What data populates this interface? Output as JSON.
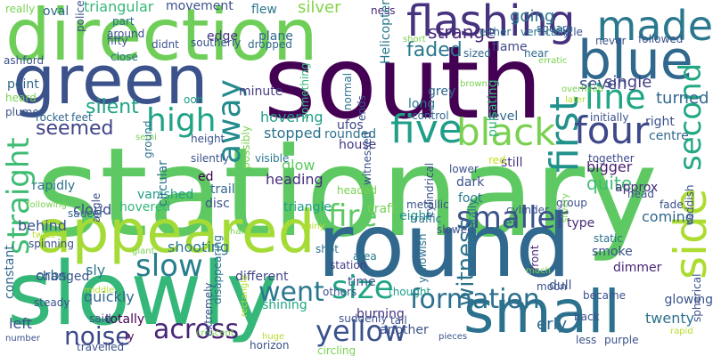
{
  "words": [
    {
      "text": "stationary",
      "color": "#5ec962"
    },
    {
      "text": "south",
      "color": "#440154"
    },
    {
      "text": "round",
      "color": "#31688e"
    },
    {
      "text": "slowly",
      "color": "#35b779"
    },
    {
      "text": "direction",
      "color": "#6ece58"
    },
    {
      "text": "green",
      "color": "#3b528b"
    },
    {
      "text": "small",
      "color": "#2c728e"
    },
    {
      "text": "appeared",
      "color": "#a5db36"
    },
    {
      "text": "blue",
      "color": "#31688e"
    },
    {
      "text": "flashing",
      "color": "#46327e"
    },
    {
      "text": "side",
      "color": "#addc30"
    },
    {
      "text": "made",
      "color": "#2a788e"
    },
    {
      "text": "first",
      "color": "#21918c"
    },
    {
      "text": "four",
      "color": "#3e4989"
    },
    {
      "text": "five",
      "color": "#1f9e89"
    },
    {
      "text": "black",
      "color": "#7ad151"
    },
    {
      "text": "line",
      "color": "#21a685"
    },
    {
      "text": "second",
      "color": "#22a884"
    },
    {
      "text": "high",
      "color": "#20a386"
    },
    {
      "text": "away",
      "color": "#238a8d"
    },
    {
      "text": "straight",
      "color": "#3fbc73"
    },
    {
      "text": "smaller",
      "color": "#3b528b"
    },
    {
      "text": "fire",
      "color": "#5ec962"
    },
    {
      "text": "size",
      "color": "#21a685"
    },
    {
      "text": "formation",
      "color": "#2d708e"
    },
    {
      "text": "yellow",
      "color": "#3b528b"
    },
    {
      "text": "slow",
      "color": "#277f8e"
    },
    {
      "text": "went",
      "color": "#2a788e"
    },
    {
      "text": "noise",
      "color": "#3e4989"
    },
    {
      "text": "across",
      "color": "#482475"
    },
    {
      "text": "seemed",
      "color": "#414487"
    },
    {
      "text": "silent",
      "color": "#20a386"
    },
    {
      "text": "witness",
      "color": "#2c728e"
    },
    {
      "text": "strange",
      "color": "#482878"
    },
    {
      "text": "faded",
      "color": "#2a788e"
    },
    {
      "text": "silver",
      "color": "#84d44b"
    },
    {
      "text": "triangular",
      "color": "#35b779"
    },
    {
      "text": "seven",
      "color": "#3b528b"
    },
    {
      "text": "single",
      "color": "#433e85"
    },
    {
      "text": "going",
      "color": "#2a788e"
    },
    {
      "text": "turned",
      "color": "#31688e"
    },
    {
      "text": "quite",
      "color": "#3fbc73"
    },
    {
      "text": "glow",
      "color": "#5ec962"
    },
    {
      "text": "hovering",
      "color": "#1f9e89"
    },
    {
      "text": "stopped",
      "color": "#2c728e"
    },
    {
      "text": "minute",
      "color": "#443983"
    },
    {
      "text": "house",
      "color": "#453781"
    },
    {
      "text": "heading",
      "color": "#472d7b"
    },
    {
      "text": "movement",
      "color": "#3b528b"
    },
    {
      "text": "plane",
      "color": "#31688e"
    },
    {
      "text": "orbs",
      "color": "#31688e"
    },
    {
      "text": "sly",
      "color": "#2a788e"
    },
    {
      "text": "shooting",
      "color": "#2a788e"
    },
    {
      "text": "vanished",
      "color": "#1f9e89"
    },
    {
      "text": "different",
      "color": "#414487"
    },
    {
      "text": "shining",
      "color": "#22a884"
    },
    {
      "text": "burning",
      "color": "#46327e"
    },
    {
      "text": "another",
      "color": "#3b528b"
    },
    {
      "text": "glowing",
      "color": "#3b528b"
    },
    {
      "text": "twenty",
      "color": "#2c728e"
    },
    {
      "text": "smoke",
      "color": "#3b528b"
    },
    {
      "text": "dull",
      "color": "#39568c"
    },
    {
      "text": "bigger",
      "color": "#481f70"
    },
    {
      "text": "coming",
      "color": "#31688e"
    },
    {
      "text": "erly",
      "color": "#31688e"
    },
    {
      "text": "er",
      "color": "#31688e"
    },
    {
      "text": "eight",
      "color": "#21918c"
    },
    {
      "text": "craft",
      "color": "#75d054"
    },
    {
      "text": "disc",
      "color": "#3b528b"
    },
    {
      "text": "triangle",
      "color": "#1f9e89"
    },
    {
      "text": "cloud",
      "color": "#3e4989"
    },
    {
      "text": "hovered",
      "color": "#35b779"
    },
    {
      "text": "circular",
      "color": "#2c728e"
    },
    {
      "text": "quickly",
      "color": "#31688e"
    },
    {
      "text": "changed",
      "color": "#39568c"
    },
    {
      "text": "behind",
      "color": "#3b528b"
    },
    {
      "text": "constant",
      "color": "#31688e"
    },
    {
      "text": "left",
      "color": "#3b528b"
    },
    {
      "text": "totally",
      "color": "#440154"
    },
    {
      "text": "edge",
      "color": "#46327e"
    },
    {
      "text": "point",
      "color": "#31688e"
    },
    {
      "text": "rapidly",
      "color": "#2c728e"
    },
    {
      "text": "flew",
      "color": "#2a788e"
    },
    {
      "text": "ness",
      "color": "#482878"
    },
    {
      "text": "oval",
      "color": "#31688e"
    },
    {
      "text": "station",
      "color": "#433e85"
    },
    {
      "text": "time",
      "color": "#3b528b"
    },
    {
      "text": "thought",
      "color": "#1f9e89"
    },
    {
      "text": "area",
      "color": "#2a788e"
    },
    {
      "text": "shot",
      "color": "#2c728e"
    },
    {
      "text": "metallic",
      "color": "#3b528b"
    },
    {
      "text": "foot",
      "color": "#2a788e"
    },
    {
      "text": "dark",
      "color": "#3b528b"
    },
    {
      "text": "still",
      "color": "#46327e"
    },
    {
      "text": "red",
      "color": "#c8e020"
    },
    {
      "text": "cylinder",
      "color": "#3b528b"
    },
    {
      "text": "type",
      "color": "#472d7b"
    },
    {
      "text": "approx",
      "color": "#472d7b"
    },
    {
      "text": "static",
      "color": "#2c728e"
    },
    {
      "text": "dimmer",
      "color": "#482475"
    },
    {
      "text": "front",
      "color": "#482878"
    },
    {
      "text": "grey",
      "color": "#31688e"
    },
    {
      "text": "long",
      "color": "#2a788e"
    },
    {
      "text": "level",
      "color": "#31688e"
    },
    {
      "text": "pulsating",
      "color": "#35b779"
    },
    {
      "text": "control",
      "color": "#31688e"
    },
    {
      "text": "right",
      "color": "#3b528b"
    },
    {
      "text": "centre",
      "color": "#31688e"
    },
    {
      "text": "initially",
      "color": "#3b528b"
    },
    {
      "text": "together",
      "color": "#3e4989"
    },
    {
      "text": "ufos",
      "color": "#3e4989"
    },
    {
      "text": "rounded",
      "color": "#2c728e"
    },
    {
      "text": "visible",
      "color": "#2a788e"
    },
    {
      "text": "silently",
      "color": "#3b528b"
    },
    {
      "text": "trail",
      "color": "#31688e"
    },
    {
      "text": "fade",
      "color": "#3b528b"
    },
    {
      "text": "head",
      "color": "#3b528b"
    },
    {
      "text": "Helicopter",
      "color": "#2a788e"
    },
    {
      "text": "flame",
      "color": "#3e4989"
    },
    {
      "text": "near",
      "color": "#31688e"
    },
    {
      "text": "erratic",
      "color": "#7ad151"
    },
    {
      "text": "never",
      "color": "#3b528b"
    },
    {
      "text": "followed",
      "color": "#3b528b"
    },
    {
      "text": "circle",
      "color": "#3b528b"
    },
    {
      "text": "square",
      "color": "#31688e"
    },
    {
      "text": "vertically",
      "color": "#2c728e"
    },
    {
      "text": "either",
      "color": "#2c728e"
    },
    {
      "text": "sized",
      "color": "#31688e"
    },
    {
      "text": "short",
      "color": "#7ad151"
    },
    {
      "text": "brown",
      "color": "#7ad151"
    },
    {
      "text": "overhead",
      "color": "#7ad151"
    },
    {
      "text": "later",
      "color": "#b5de2b"
    },
    {
      "text": "dropped",
      "color": "#31688e"
    },
    {
      "text": "didnt",
      "color": "#3b528b"
    },
    {
      "text": "southerly",
      "color": "#3b528b"
    },
    {
      "text": "part",
      "color": "#2c728e"
    },
    {
      "text": "fifty",
      "color": "#3b528b"
    },
    {
      "text": "around",
      "color": "#3b528b"
    },
    {
      "text": "police",
      "color": "#3b528b"
    },
    {
      "text": "close",
      "color": "#2c728e"
    },
    {
      "text": "really",
      "color": "#7ad151"
    },
    {
      "text": "ashford",
      "color": "#3b528b"
    },
    {
      "text": "heard",
      "color": "#7ad151"
    },
    {
      "text": "plume",
      "color": "#3b528b"
    },
    {
      "text": "rocket",
      "color": "#31688e"
    },
    {
      "text": "feet",
      "color": "#31688e"
    },
    {
      "text": "saucer",
      "color": "#31688e"
    },
    {
      "text": "angle",
      "color": "#3b528b"
    },
    {
      "text": "semi",
      "color": "#7ad151"
    },
    {
      "text": "height",
      "color": "#3b528b"
    },
    {
      "text": "oon",
      "color": "#1f9e89"
    },
    {
      "text": "something",
      "color": "#35b779"
    },
    {
      "text": "normal",
      "color": "#2c728e"
    },
    {
      "text": "ends",
      "color": "#3b528b"
    },
    {
      "text": "possibly",
      "color": "#7ad151"
    },
    {
      "text": "ground",
      "color": "#2c728e"
    },
    {
      "text": "ed",
      "color": "#440154"
    },
    {
      "text": "witnessed",
      "color": "#3b528b"
    },
    {
      "text": "headed",
      "color": "#7ad151"
    },
    {
      "text": "cylindrical",
      "color": "#3b528b"
    },
    {
      "text": "lower",
      "color": "#3b528b"
    },
    {
      "text": "group",
      "color": "#3b528b"
    },
    {
      "text": "silvery",
      "color": "#7ad151"
    },
    {
      "text": "reddish",
      "color": "#3b528b"
    },
    {
      "text": "following",
      "color": "#7ad151"
    },
    {
      "text": "twice",
      "color": "#b5de2b"
    },
    {
      "text": "spinning",
      "color": "#3b528b"
    },
    {
      "text": "giant",
      "color": "#7ad151"
    },
    {
      "text": "half",
      "color": "#7ad151"
    },
    {
      "text": "disappearing",
      "color": "#2c728e"
    },
    {
      "text": "shiny",
      "color": "#b5de2b"
    },
    {
      "text": "traffic",
      "color": "#2c728e"
    },
    {
      "text": "slowed",
      "color": "#3b528b"
    },
    {
      "text": "yellowish",
      "color": "#2c728e"
    },
    {
      "text": "horizontally",
      "color": "#2c728e"
    },
    {
      "text": "much",
      "color": "#7ad151"
    },
    {
      "text": "moon",
      "color": "#3b528b"
    },
    {
      "text": "spherical",
      "color": "#3b528b"
    },
    {
      "text": "middle",
      "color": "#b5de2b"
    },
    {
      "text": "said",
      "color": "#3b528b"
    },
    {
      "text": "number",
      "color": "#3b528b"
    },
    {
      "text": "steady",
      "color": "#3b528b"
    },
    {
      "text": "ly",
      "color": "#440154"
    },
    {
      "text": "travelled",
      "color": "#3b528b"
    },
    {
      "text": "crescent",
      "color": "#7ad151"
    },
    {
      "text": "extremely",
      "color": "#3b528b"
    },
    {
      "text": "rectangle",
      "color": "#b5de2b"
    },
    {
      "text": "huge",
      "color": "#b5de2b"
    },
    {
      "text": "horizon",
      "color": "#3b528b"
    },
    {
      "text": "circling",
      "color": "#7ad151"
    },
    {
      "text": "others",
      "color": "#3b528b"
    },
    {
      "text": "suddenly",
      "color": "#3b528b"
    },
    {
      "text": "tail",
      "color": "#3b528b"
    },
    {
      "text": "pieces",
      "color": "#3b528b"
    },
    {
      "text": "became",
      "color": "#3b528b"
    },
    {
      "text": "back",
      "color": "#3b528b"
    },
    {
      "text": "less",
      "color": "#3b528b"
    },
    {
      "text": "purple",
      "color": "#3b528b"
    },
    {
      "text": "rapid",
      "color": "#b5de2b"
    }
  ]
}
